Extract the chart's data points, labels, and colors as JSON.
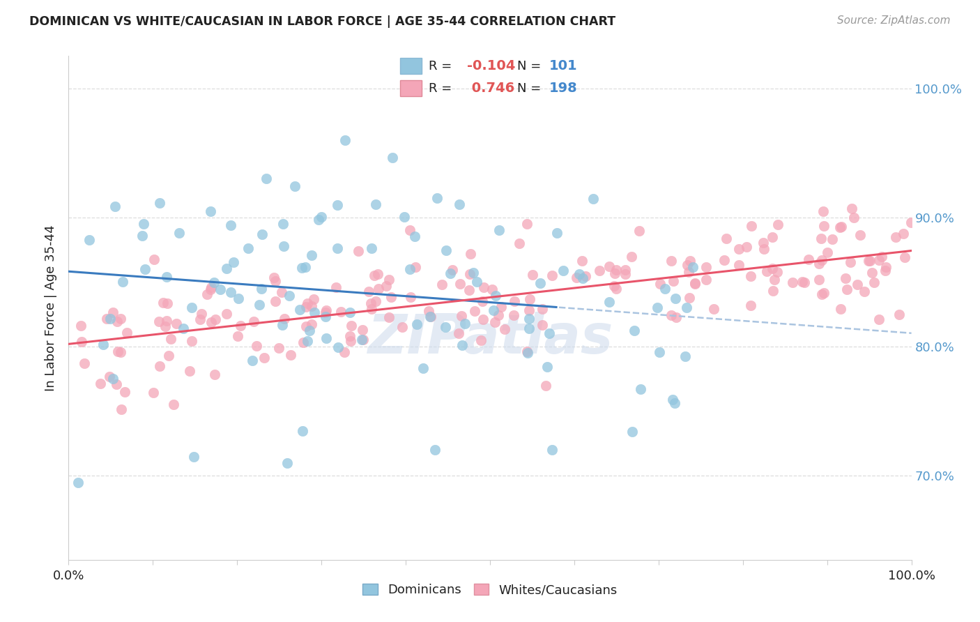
{
  "title": "DOMINICAN VS WHITE/CAUCASIAN IN LABOR FORCE | AGE 35-44 CORRELATION CHART",
  "source": "Source: ZipAtlas.com",
  "ylabel": "In Labor Force | Age 35-44",
  "xlim": [
    0.0,
    1.0
  ],
  "ylim": [
    0.635,
    1.025
  ],
  "yticks": [
    0.7,
    0.8,
    0.9,
    1.0
  ],
  "xtick_labels": [
    "0.0%",
    "",
    "",
    "",
    "",
    "",
    "",
    "",
    "",
    "",
    "100.0%"
  ],
  "ytick_labels": [
    "70.0%",
    "80.0%",
    "90.0%",
    "100.0%"
  ],
  "r_dominican": -0.104,
  "n_dominican": 101,
  "r_caucasian": 0.746,
  "n_caucasian": 198,
  "color_dominican": "#92c5de",
  "color_caucasian": "#f4a6b8",
  "color_line_dominican": "#3a7bbf",
  "color_line_caucasian": "#e8546a",
  "color_dashed": "#aac4e0",
  "background_color": "#ffffff",
  "watermark": "ZIPatlas",
  "text_color_dark": "#222222",
  "text_color_r": "#e05555",
  "text_color_n": "#4488cc",
  "text_color_right_axis": "#5599cc",
  "grid_color": "#dddddd",
  "legend_bottom_dom_color": "#92c5de",
  "legend_bottom_cau_color": "#f4a6b8"
}
